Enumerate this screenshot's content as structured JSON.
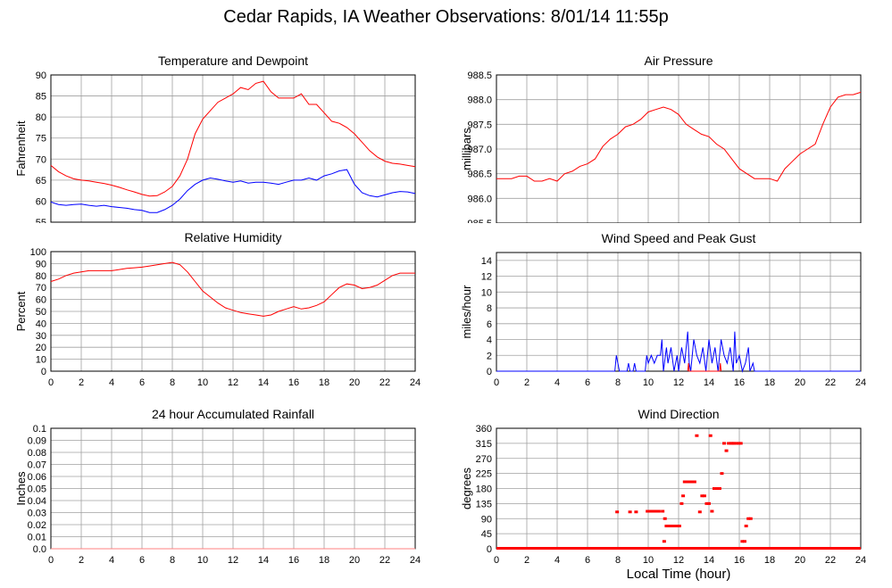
{
  "title": "Cedar Rapids, IA Weather Observations: 8/01/14 11:55p",
  "xlabel": "Local Time (hour)",
  "colors": {
    "red": "#ff0000",
    "blue": "#0000ff",
    "grid": "#a0a0a0",
    "pink": "#ff8080"
  },
  "chart_data": [
    {
      "id": "temp",
      "type": "line",
      "title": "Temperature and Dewpoint",
      "ylabel": "Fahrenheit",
      "xlim": [
        0,
        24
      ],
      "ylim": [
        55,
        90
      ],
      "xticks": [
        0,
        2,
        4,
        6,
        8,
        10,
        12,
        14,
        16,
        18,
        20,
        22,
        24
      ],
      "yticks": [
        55,
        60,
        65,
        70,
        75,
        80,
        85,
        90
      ],
      "series": [
        {
          "color": "#ff0000",
          "x": [
            0,
            0.5,
            1,
            1.5,
            2,
            2.5,
            3,
            3.5,
            4,
            4.5,
            5,
            5.5,
            6,
            6.5,
            7,
            7.5,
            8,
            8.5,
            9,
            9.5,
            10,
            10.5,
            11,
            11.5,
            12,
            12.5,
            13,
            13.5,
            14,
            14.5,
            15,
            15.5,
            16,
            16.5,
            17,
            17.5,
            18,
            18.5,
            19,
            19.5,
            20,
            20.5,
            21,
            21.5,
            22,
            22.5,
            23,
            23.5,
            24
          ],
          "y": [
            68.5,
            67,
            66,
            65.3,
            65,
            64.8,
            64.5,
            64.2,
            63.8,
            63.3,
            62.7,
            62.2,
            61.6,
            61.2,
            61.3,
            62.2,
            63.5,
            66,
            70,
            76,
            79.5,
            81.5,
            83.5,
            84.5,
            85.5,
            87,
            86.5,
            88,
            88.5,
            86,
            84.5,
            84.5,
            84.5,
            85.5,
            83,
            83,
            81,
            79,
            78.5,
            77.5,
            76,
            74,
            72,
            70.5,
            69.5,
            69,
            68.8,
            68.5,
            68.2
          ]
        },
        {
          "color": "#0000ff",
          "x": [
            0,
            0.5,
            1,
            1.5,
            2,
            2.5,
            3,
            3.5,
            4,
            4.5,
            5,
            5.5,
            6,
            6.5,
            7,
            7.5,
            8,
            8.5,
            9,
            9.5,
            10,
            10.5,
            11,
            11.5,
            12,
            12.5,
            13,
            13.5,
            14,
            14.5,
            15,
            15.5,
            16,
            16.5,
            17,
            17.5,
            18,
            18.5,
            19,
            19.5,
            20,
            20.5,
            21,
            21.5,
            22,
            22.5,
            23,
            23.5,
            24
          ],
          "y": [
            59.8,
            59.2,
            59,
            59.2,
            59.3,
            59,
            58.8,
            59,
            58.7,
            58.5,
            58.3,
            58,
            57.8,
            57.3,
            57.3,
            58,
            59,
            60.5,
            62.5,
            64,
            65,
            65.5,
            65.2,
            64.8,
            64.5,
            64.8,
            64.3,
            64.5,
            64.5,
            64.3,
            64,
            64.5,
            65,
            65,
            65.5,
            65,
            66,
            66.5,
            67.2,
            67.5,
            64,
            62,
            61.3,
            61,
            61.5,
            62,
            62.3,
            62.2,
            61.8
          ]
        }
      ]
    },
    {
      "id": "pressure",
      "type": "line",
      "title": "Air Pressure",
      "ylabel": "millibars",
      "xlim": [
        0,
        24
      ],
      "ylim": [
        985.5,
        988.5
      ],
      "xticks": [
        0,
        2,
        4,
        6,
        8,
        10,
        12,
        14,
        16,
        18,
        20,
        22,
        24
      ],
      "yticks": [
        "985.5",
        "986.0",
        "986.5",
        "987.0",
        "987.5",
        "988.0",
        "988.5"
      ],
      "series": [
        {
          "color": "#ff0000",
          "x": [
            0,
            0.5,
            1,
            1.5,
            2,
            2.5,
            3,
            3.5,
            4,
            4.5,
            5,
            5.5,
            6,
            6.5,
            7,
            7.5,
            8,
            8.5,
            9,
            9.5,
            10,
            10.5,
            11,
            11.5,
            12,
            12.5,
            13,
            13.5,
            14,
            14.5,
            15,
            15.5,
            16,
            16.5,
            17,
            17.5,
            18,
            18.5,
            19,
            19.5,
            20,
            20.5,
            21,
            21.5,
            22,
            22.5,
            23,
            23.5,
            24
          ],
          "y": [
            986.4,
            986.4,
            986.4,
            986.45,
            986.45,
            986.35,
            986.35,
            986.4,
            986.35,
            986.5,
            986.55,
            986.65,
            986.7,
            986.8,
            987.05,
            987.2,
            987.3,
            987.45,
            987.5,
            987.6,
            987.75,
            987.8,
            987.85,
            987.8,
            987.7,
            987.5,
            987.4,
            987.3,
            987.25,
            987.1,
            987.0,
            986.8,
            986.6,
            986.5,
            986.4,
            986.4,
            986.4,
            986.35,
            986.6,
            986.75,
            986.9,
            987.0,
            987.1,
            987.5,
            987.85,
            988.05,
            988.1,
            988.1,
            988.15
          ]
        }
      ]
    },
    {
      "id": "humidity",
      "type": "line",
      "title": "Relative Humidity",
      "ylabel": "Percent",
      "xlim": [
        0,
        24
      ],
      "ylim": [
        0,
        100
      ],
      "xticks": [
        0,
        2,
        4,
        6,
        8,
        10,
        12,
        14,
        16,
        18,
        20,
        22,
        24
      ],
      "yticks": [
        0,
        10,
        20,
        30,
        40,
        50,
        60,
        70,
        80,
        90,
        100
      ],
      "series": [
        {
          "color": "#ff0000",
          "x": [
            0,
            0.5,
            1,
            1.5,
            2,
            2.5,
            3,
            3.5,
            4,
            4.5,
            5,
            5.5,
            6,
            6.5,
            7,
            7.5,
            8,
            8.5,
            9,
            9.5,
            10,
            10.5,
            11,
            11.5,
            12,
            12.5,
            13,
            13.5,
            14,
            14.5,
            15,
            15.5,
            16,
            16.5,
            17,
            17.5,
            18,
            18.5,
            19,
            19.5,
            20,
            20.5,
            21,
            21.5,
            22,
            22.5,
            23,
            23.5,
            24
          ],
          "y": [
            75,
            77,
            80,
            82,
            83,
            84,
            84,
            84,
            84,
            85,
            86,
            86.5,
            87,
            88,
            89,
            90,
            91,
            89,
            83,
            75,
            67,
            62,
            57,
            53,
            51,
            49,
            48,
            47,
            46,
            47,
            50,
            52,
            54,
            52,
            53,
            55,
            58,
            64,
            70,
            73,
            72,
            69,
            70,
            72,
            76,
            80,
            82,
            82,
            82
          ]
        }
      ]
    },
    {
      "id": "wind",
      "type": "line",
      "title": "Wind Speed and Peak Gust",
      "ylabel": "miles/hour",
      "xlim": [
        0,
        24
      ],
      "ylim": [
        0,
        15
      ],
      "xticks": [
        0,
        2,
        4,
        6,
        8,
        10,
        12,
        14,
        16,
        18,
        20,
        22,
        24
      ],
      "yticks": [
        0,
        2,
        4,
        6,
        8,
        10,
        12,
        14
      ],
      "series": [
        {
          "color": "#0000ff",
          "x": [
            0,
            7.8,
            7.9,
            8.0,
            8.1,
            8.6,
            8.7,
            8.8,
            9.0,
            9.1,
            9.2,
            9.8,
            9.9,
            10.0,
            10.2,
            10.4,
            10.6,
            10.8,
            10.9,
            11.0,
            11.2,
            11.3,
            11.5,
            11.7,
            11.9,
            12.0,
            12.2,
            12.4,
            12.6,
            12.7,
            12.8,
            13.0,
            13.2,
            13.4,
            13.6,
            13.8,
            14.0,
            14.2,
            14.4,
            14.6,
            14.8,
            15.0,
            15.2,
            15.4,
            15.6,
            15.7,
            15.8,
            16.0,
            16.2,
            16.4,
            16.6,
            16.7,
            16.9,
            17.0,
            24
          ],
          "y": [
            0,
            0,
            2,
            1,
            0,
            0,
            1,
            0,
            0,
            1,
            0,
            0,
            2,
            1,
            2,
            1,
            2,
            2,
            4,
            0,
            3,
            1,
            3,
            0,
            2,
            0,
            3,
            1,
            5,
            1,
            0,
            4,
            2,
            1,
            3,
            0,
            4,
            1,
            3,
            0,
            4,
            2,
            1,
            3,
            0,
            5,
            1,
            2,
            0,
            1,
            3,
            0,
            1,
            0,
            0
          ]
        },
        {
          "color": "#ff0000",
          "x": [
            12.6,
            12.65,
            12.7,
            14.7,
            14.75,
            14.8
          ],
          "y": [
            0,
            1,
            0,
            0,
            1,
            0
          ]
        }
      ]
    },
    {
      "id": "rain",
      "type": "line",
      "title": "24 hour Accumulated Rainfall",
      "ylabel": "Inches",
      "xlim": [
        0,
        24
      ],
      "ylim": [
        0,
        0.1
      ],
      "xticks": [
        0,
        2,
        4,
        6,
        8,
        10,
        12,
        14,
        16,
        18,
        20,
        22,
        24
      ],
      "yticks": [
        "0.0",
        "0.01",
        "0.02",
        "0.03",
        "0.04",
        "0.05",
        "0.06",
        "0.07",
        "0.08",
        "0.09",
        "0.1"
      ],
      "series": [
        {
          "color": "#ff8080",
          "x": [
            0,
            24
          ],
          "y": [
            0,
            0
          ]
        }
      ]
    },
    {
      "id": "direction",
      "type": "scatter",
      "title": "Wind Direction",
      "ylabel": "degrees",
      "xlim": [
        0,
        24
      ],
      "ylim": [
        0,
        360
      ],
      "xticks": [
        0,
        2,
        4,
        6,
        8,
        10,
        12,
        14,
        16,
        18,
        20,
        22,
        24
      ],
      "yticks": [
        0,
        45,
        90,
        135,
        180,
        225,
        270,
        315,
        360
      ],
      "series": [
        {
          "color": "#ff0000",
          "marker": "dot",
          "x": [
            7.95,
            8.8,
            9.2,
            9.95,
            10.1,
            10.25,
            10.4,
            10.55,
            10.7,
            10.95,
            11.05,
            11.1,
            11.2,
            11.3,
            11.45,
            11.6,
            11.75,
            11.9,
            12.05,
            12.2,
            12.3,
            12.4,
            12.6,
            12.75,
            12.9,
            13.05,
            13.2,
            13.4,
            13.55,
            13.7,
            13.85,
            14.0,
            14.1,
            14.2,
            14.35,
            14.55,
            14.7,
            14.85,
            15.0,
            15.15,
            15.3,
            15.45,
            15.55,
            15.65,
            15.8,
            15.95,
            16.1,
            16.2,
            16.35,
            16.45,
            16.6,
            16.75
          ],
          "y": [
            110,
            110,
            110,
            112,
            112,
            112,
            112,
            112,
            112,
            112,
            22,
            90,
            68,
            68,
            68,
            68,
            68,
            68,
            68,
            135,
            158,
            200,
            200,
            200,
            200,
            200,
            338,
            110,
            158,
            158,
            135,
            135,
            338,
            112,
            180,
            180,
            180,
            225,
            315,
            293,
            315,
            315,
            315,
            315,
            315,
            315,
            315,
            22,
            22,
            68,
            90,
            90
          ]
        },
        {
          "color": "#ff0000",
          "marker": "baseline",
          "x": [
            0,
            24
          ],
          "y": [
            0,
            0
          ]
        }
      ]
    }
  ]
}
